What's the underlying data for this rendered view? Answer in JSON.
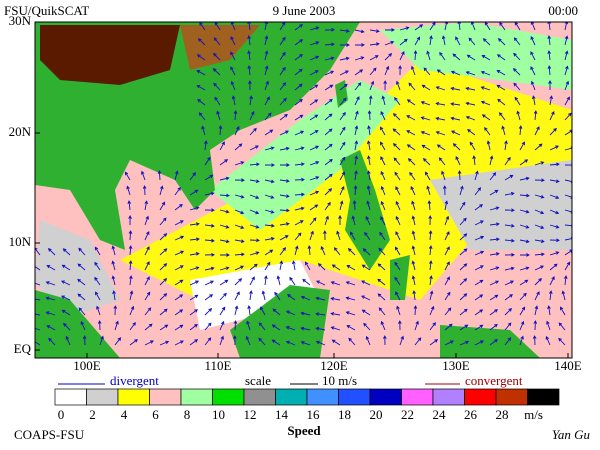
{
  "header": {
    "left": "FSU/QuikSCAT",
    "center": "9 June 2003",
    "right": "00:00"
  },
  "map": {
    "lat_labels": [
      "30N",
      "20N",
      "10N",
      "EQ"
    ],
    "lon_labels": [
      "100E",
      "110E",
      "120E",
      "130E",
      "140E"
    ]
  },
  "legend": {
    "divergent": "divergent",
    "scale": "scale",
    "scale_value": "10 m/s",
    "convergent": "convergent"
  },
  "colorbar": {
    "colors": [
      "#ffffff",
      "#d0d0d0",
      "#ffff00",
      "#ffc0c0",
      "#a0ffa0",
      "#00e000",
      "#909090",
      "#00b0b0",
      "#4090ff",
      "#2050ff",
      "#0000c0",
      "#ff60ff",
      "#b080ff",
      "#ff0000",
      "#c03000",
      "#000000"
    ],
    "labels": [
      0,
      2,
      4,
      6,
      8,
      10,
      12,
      14,
      16,
      18,
      20,
      22,
      24,
      26,
      28
    ],
    "unit": "m/s",
    "title": "Speed"
  },
  "footer": {
    "left": "COAPS-FSU",
    "right": "Yan Gu"
  }
}
